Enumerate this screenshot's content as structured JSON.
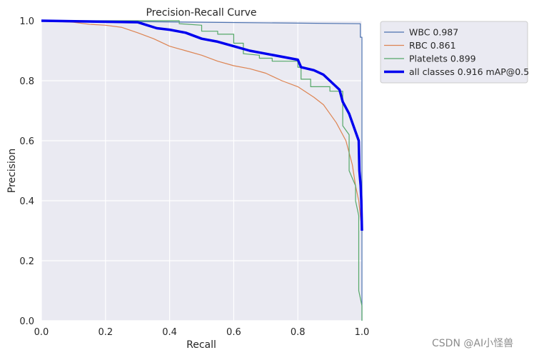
{
  "chart_data": {
    "type": "line",
    "title": "Precision-Recall Curve",
    "xlabel": "Recall",
    "ylabel": "Precision",
    "xlim": [
      0,
      1
    ],
    "ylim": [
      0,
      1
    ],
    "xticks": [
      "0.0",
      "0.2",
      "0.4",
      "0.6",
      "0.8",
      "1.0"
    ],
    "yticks": [
      "0.0",
      "0.2",
      "0.4",
      "0.6",
      "0.8",
      "1.0"
    ],
    "grid": true,
    "legend_position": "outside-top-right",
    "series": [
      {
        "name": "WBC 0.987",
        "color": "#4c72b0",
        "width": 1.2,
        "points": [
          [
            0,
            1.0
          ],
          [
            0.995,
            0.99
          ],
          [
            0.995,
            0.945
          ],
          [
            1.0,
            0.945
          ],
          [
            1.0,
            0.0
          ]
        ]
      },
      {
        "name": "RBC 0.861",
        "color": "#dd8452",
        "width": 1.2,
        "points": [
          [
            0,
            1.0
          ],
          [
            0.1,
            0.995
          ],
          [
            0.15,
            0.988
          ],
          [
            0.2,
            0.985
          ],
          [
            0.25,
            0.978
          ],
          [
            0.3,
            0.96
          ],
          [
            0.35,
            0.94
          ],
          [
            0.4,
            0.915
          ],
          [
            0.45,
            0.9
          ],
          [
            0.5,
            0.885
          ],
          [
            0.55,
            0.865
          ],
          [
            0.6,
            0.85
          ],
          [
            0.65,
            0.84
          ],
          [
            0.7,
            0.825
          ],
          [
            0.75,
            0.8
          ],
          [
            0.8,
            0.78
          ],
          [
            0.85,
            0.745
          ],
          [
            0.88,
            0.72
          ],
          [
            0.9,
            0.69
          ],
          [
            0.92,
            0.66
          ],
          [
            0.95,
            0.6
          ],
          [
            0.97,
            0.52
          ],
          [
            0.98,
            0.45
          ],
          [
            0.99,
            0.4
          ],
          [
            1.0,
            0.3
          ]
        ]
      },
      {
        "name": "Platelets 0.899",
        "color": "#55a868",
        "width": 1.2,
        "points": [
          [
            0,
            1.0
          ],
          [
            0.43,
            1.0
          ],
          [
            0.43,
            0.99
          ],
          [
            0.5,
            0.985
          ],
          [
            0.5,
            0.965
          ],
          [
            0.55,
            0.965
          ],
          [
            0.55,
            0.955
          ],
          [
            0.6,
            0.955
          ],
          [
            0.6,
            0.925
          ],
          [
            0.63,
            0.925
          ],
          [
            0.63,
            0.89
          ],
          [
            0.68,
            0.885
          ],
          [
            0.68,
            0.875
          ],
          [
            0.72,
            0.875
          ],
          [
            0.72,
            0.865
          ],
          [
            0.8,
            0.865
          ],
          [
            0.8,
            0.845
          ],
          [
            0.81,
            0.845
          ],
          [
            0.81,
            0.805
          ],
          [
            0.84,
            0.805
          ],
          [
            0.84,
            0.78
          ],
          [
            0.9,
            0.78
          ],
          [
            0.9,
            0.765
          ],
          [
            0.94,
            0.765
          ],
          [
            0.94,
            0.65
          ],
          [
            0.96,
            0.62
          ],
          [
            0.96,
            0.5
          ],
          [
            0.98,
            0.45
          ],
          [
            0.98,
            0.4
          ],
          [
            0.99,
            0.35
          ],
          [
            0.99,
            0.1
          ],
          [
            1.0,
            0.05
          ],
          [
            1.0,
            0.0
          ]
        ]
      },
      {
        "name": "all classes 0.916 mAP@0.5",
        "color": "#0000ee",
        "width": 3.5,
        "points": [
          [
            0,
            1.0
          ],
          [
            0.3,
            0.995
          ],
          [
            0.33,
            0.985
          ],
          [
            0.36,
            0.975
          ],
          [
            0.4,
            0.97
          ],
          [
            0.45,
            0.96
          ],
          [
            0.5,
            0.94
          ],
          [
            0.55,
            0.93
          ],
          [
            0.6,
            0.915
          ],
          [
            0.65,
            0.9
          ],
          [
            0.7,
            0.89
          ],
          [
            0.75,
            0.88
          ],
          [
            0.8,
            0.87
          ],
          [
            0.81,
            0.845
          ],
          [
            0.85,
            0.835
          ],
          [
            0.88,
            0.82
          ],
          [
            0.9,
            0.8
          ],
          [
            0.93,
            0.77
          ],
          [
            0.94,
            0.73
          ],
          [
            0.96,
            0.69
          ],
          [
            0.97,
            0.66
          ],
          [
            0.98,
            0.63
          ],
          [
            0.99,
            0.6
          ],
          [
            0.992,
            0.5
          ],
          [
            0.996,
            0.45
          ],
          [
            0.998,
            0.4
          ],
          [
            1.0,
            0.3
          ]
        ]
      }
    ]
  },
  "watermark": "CSDN @AI小怪兽"
}
